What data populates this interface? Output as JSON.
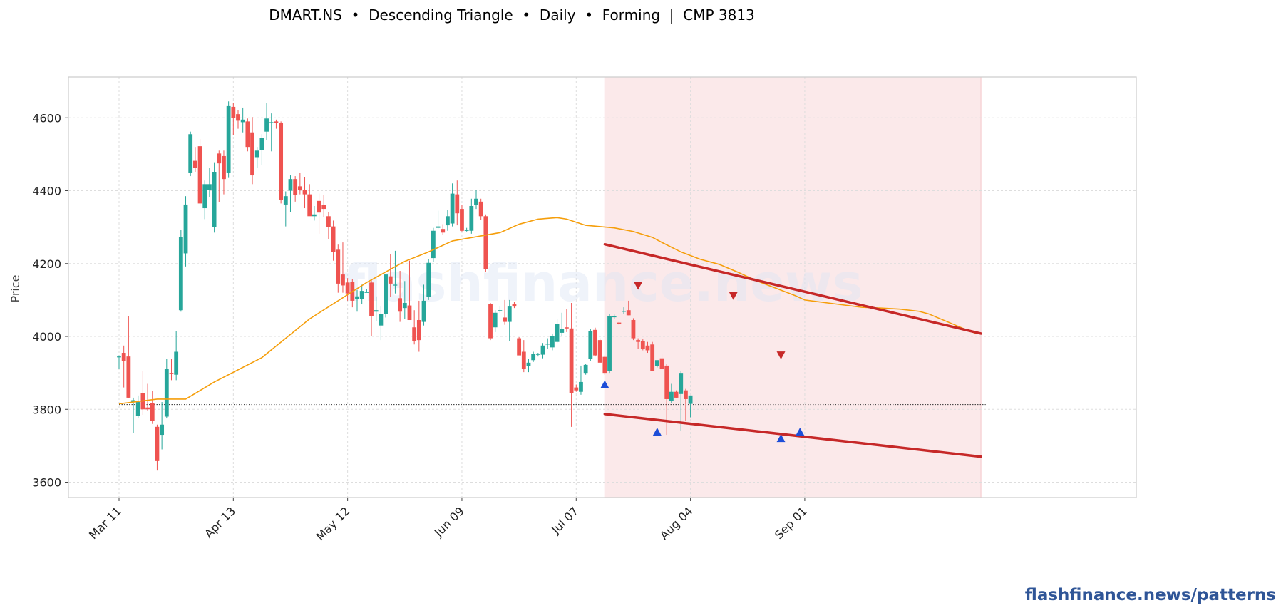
{
  "title": "DMART.NS  •  Descending Triangle  •  Daily  •  Forming  |  CMP 3813",
  "footer": "flashfinance.news/patterns",
  "watermark": "flashfinance.news",
  "colors": {
    "up": "#26a69a",
    "down": "#ef5350",
    "ma": "#f59e0b",
    "trendline": "#c62828",
    "pattern_zone": "#fbe9ea",
    "low_marker": "#1d4ed8",
    "high_marker": "#c62828",
    "footer": "#2f5597"
  },
  "chart_data": {
    "type": "candlestick",
    "ylabel": "Price",
    "ylim": [
      3558,
      4712
    ],
    "yticks": [
      3600,
      3800,
      4000,
      4200,
      4400,
      4600
    ],
    "grid": true,
    "xtick_labels": [
      {
        "label": "Mar 11",
        "index": 0
      },
      {
        "label": "Apr 13",
        "index": 24
      },
      {
        "label": "May 12",
        "index": 48
      },
      {
        "label": "Jun 09",
        "index": 72
      },
      {
        "label": "Jul 07",
        "index": 96
      },
      {
        "label": "Aug 04",
        "index": 120
      },
      {
        "label": "Sep 01",
        "index": 144
      }
    ],
    "candles": [
      [
        3945,
        3948,
        3910,
        3945
      ],
      [
        3955,
        3975,
        3860,
        3932
      ],
      [
        3945,
        4055,
        3830,
        3832
      ],
      [
        3820,
        3832,
        3735,
        3825
      ],
      [
        3782,
        3838,
        3775,
        3820
      ],
      [
        3845,
        3905,
        3785,
        3800
      ],
      [
        3805,
        3870,
        3795,
        3800
      ],
      [
        3818,
        3850,
        3760,
        3768
      ],
      [
        3752,
        3758,
        3632,
        3658
      ],
      [
        3730,
        3820,
        3690,
        3758
      ],
      [
        3780,
        3938,
        3775,
        3912
      ],
      [
        3900,
        3938,
        3880,
        3898
      ],
      [
        3895,
        4015,
        3880,
        3958
      ],
      [
        4072,
        4292,
        4068,
        4272
      ],
      [
        4228,
        4385,
        4192,
        4362
      ],
      [
        4448,
        4562,
        4440,
        4555
      ],
      [
        4482,
        4520,
        4450,
        4462
      ],
      [
        4522,
        4542,
        4358,
        4365
      ],
      [
        4352,
        4428,
        4322,
        4418
      ],
      [
        4402,
        4462,
        4382,
        4418
      ],
      [
        4300,
        4478,
        4285,
        4450
      ],
      [
        4502,
        4510,
        4368,
        4475
      ],
      [
        4495,
        4510,
        4390,
        4432
      ],
      [
        4448,
        4645,
        4435,
        4632
      ],
      [
        4630,
        4640,
        4552,
        4600
      ],
      [
        4610,
        4622,
        4570,
        4592
      ],
      [
        4588,
        4628,
        4560,
        4595
      ],
      [
        4590,
        4598,
        4508,
        4520
      ],
      [
        4560,
        4602,
        4418,
        4442
      ],
      [
        4492,
        4520,
        4462,
        4510
      ],
      [
        4512,
        4555,
        4470,
        4545
      ],
      [
        4562,
        4640,
        4538,
        4598
      ],
      [
        4588,
        4612,
        4508,
        4588
      ],
      [
        4590,
        4595,
        4570,
        4585
      ],
      [
        4585,
        4590,
        4365,
        4375
      ],
      [
        4362,
        4398,
        4302,
        4385
      ],
      [
        4400,
        4442,
        4342,
        4432
      ],
      [
        4432,
        4440,
        4370,
        4388
      ],
      [
        4412,
        4448,
        4390,
        4402
      ],
      [
        4402,
        4438,
        4352,
        4390
      ],
      [
        4390,
        4418,
        4332,
        4330
      ],
      [
        4330,
        4358,
        4318,
        4335
      ],
      [
        4372,
        4392,
        4282,
        4340
      ],
      [
        4360,
        4388,
        4328,
        4350
      ],
      [
        4330,
        4342,
        4268,
        4300
      ],
      [
        4302,
        4318,
        4208,
        4232
      ],
      [
        4238,
        4252,
        4120,
        4145
      ],
      [
        4170,
        4258,
        4120,
        4140
      ],
      [
        4148,
        4160,
        4098,
        4118
      ],
      [
        4150,
        4158,
        4080,
        4098
      ],
      [
        4102,
        4128,
        4068,
        4110
      ],
      [
        4102,
        4142,
        4088,
        4125
      ],
      [
        4122,
        4130,
        4122,
        4122
      ],
      [
        4148,
        4158,
        4000,
        4055
      ],
      [
        4068,
        4110,
        4042,
        4072
      ],
      [
        4030,
        4082,
        3990,
        4062
      ],
      [
        4062,
        4172,
        4052,
        4170
      ],
      [
        4165,
        4225,
        4108,
        4145
      ],
      [
        4140,
        4235,
        4118,
        4142
      ],
      [
        4105,
        4180,
        4040,
        4068
      ],
      [
        4078,
        4152,
        4048,
        4092
      ],
      [
        4085,
        4208,
        4052,
        4045
      ],
      [
        4025,
        4072,
        3978,
        3988
      ],
      [
        4045,
        4098,
        3958,
        3990
      ],
      [
        4040,
        4142,
        4030,
        4098
      ],
      [
        4108,
        4212,
        4100,
        4202
      ],
      [
        4215,
        4298,
        4205,
        4290
      ],
      [
        4298,
        4345,
        4295,
        4302
      ],
      [
        4295,
        4308,
        4278,
        4285
      ],
      [
        4305,
        4348,
        4290,
        4330
      ],
      [
        4310,
        4420,
        4302,
        4392
      ],
      [
        4390,
        4428,
        4305,
        4338
      ],
      [
        4350,
        4360,
        4288,
        4290
      ],
      [
        4292,
        4298,
        4288,
        4292
      ],
      [
        4290,
        4378,
        4282,
        4358
      ],
      [
        4360,
        4402,
        4350,
        4378
      ],
      [
        4370,
        4378,
        4320,
        4330
      ],
      [
        4330,
        4335,
        4178,
        4185
      ],
      [
        4090,
        4092,
        3990,
        3995
      ],
      [
        4025,
        4072,
        4012,
        4065
      ],
      [
        4070,
        4082,
        4065,
        4072
      ],
      [
        4052,
        4100,
        4032,
        4040
      ],
      [
        4040,
        4100,
        3988,
        4082
      ],
      [
        4088,
        4095,
        4078,
        4082
      ],
      [
        3995,
        3998,
        3950,
        3948
      ],
      [
        3958,
        3990,
        3902,
        3912
      ],
      [
        3918,
        3938,
        3902,
        3928
      ],
      [
        3935,
        3958,
        3930,
        3952
      ],
      [
        3950,
        3955,
        3945,
        3952
      ],
      [
        3950,
        3982,
        3940,
        3975
      ],
      [
        3978,
        3995,
        3965,
        3980
      ],
      [
        3970,
        4008,
        3962,
        4002
      ],
      [
        3985,
        4048,
        3982,
        4035
      ],
      [
        4010,
        4065,
        4000,
        4020
      ],
      [
        4025,
        4075,
        4012,
        4022
      ],
      [
        4022,
        4092,
        3752,
        3845
      ],
      [
        3860,
        3868,
        3848,
        3852
      ],
      [
        3848,
        3920,
        3840,
        3875
      ],
      [
        3900,
        3925,
        3895,
        3922
      ],
      [
        3938,
        4020,
        3932,
        4015
      ],
      [
        4018,
        4024,
        3945,
        3948
      ],
      [
        3990,
        3995,
        3928,
        3928
      ],
      [
        3944,
        3948,
        3895,
        3900
      ],
      [
        3905,
        4062,
        3900,
        4055
      ],
      [
        4055,
        4060,
        4048,
        4055
      ],
      [
        4038,
        4040,
        4032,
        4035
      ],
      [
        4070,
        4080,
        4062,
        4070
      ],
      [
        4072,
        4098,
        4058,
        4058
      ],
      [
        4045,
        4050,
        3990,
        3995
      ],
      [
        3990,
        3995,
        3965,
        3985
      ],
      [
        3988,
        3992,
        3962,
        3965
      ],
      [
        3975,
        3985,
        3955,
        3962
      ],
      [
        3978,
        3985,
        3905,
        3905
      ],
      [
        3918,
        3935,
        3915,
        3935
      ],
      [
        3940,
        3952,
        3910,
        3910
      ],
      [
        3920,
        3925,
        3730,
        3828
      ],
      [
        3822,
        3870,
        3818,
        3848
      ],
      [
        3848,
        3852,
        3830,
        3832
      ],
      [
        3842,
        3905,
        3742,
        3900
      ],
      [
        3852,
        3856,
        3768,
        3828
      ],
      [
        3815,
        3832,
        3778,
        3838
      ]
    ],
    "moving_average": [
      [
        0,
        3815
      ],
      [
        8,
        3828
      ],
      [
        14,
        3828
      ],
      [
        20,
        3875
      ],
      [
        30,
        3942
      ],
      [
        40,
        4048
      ],
      [
        52,
        4148
      ],
      [
        60,
        4206
      ],
      [
        65,
        4232
      ],
      [
        70,
        4262
      ],
      [
        80,
        4285
      ],
      [
        84,
        4308
      ],
      [
        88,
        4322
      ],
      [
        92,
        4326
      ],
      [
        94,
        4322
      ],
      [
        98,
        4305
      ],
      [
        104,
        4298
      ],
      [
        108,
        4288
      ],
      [
        112,
        4272
      ],
      [
        114,
        4258
      ],
      [
        118,
        4232
      ],
      [
        122,
        4212
      ],
      [
        126,
        4198
      ],
      [
        130,
        4176
      ],
      [
        134,
        4152
      ],
      [
        138,
        4132
      ],
      [
        142,
        4112
      ],
      [
        144,
        4100
      ],
      [
        150,
        4090
      ],
      [
        156,
        4080
      ],
      [
        160,
        4078
      ],
      [
        164,
        4075
      ],
      [
        168,
        4069
      ],
      [
        170,
        4062
      ],
      [
        174,
        4040
      ],
      [
        178,
        4018
      ],
      [
        180,
        4008
      ]
    ],
    "reference_line": {
      "value": 3813,
      "x0": 0,
      "x1": 182
    },
    "pattern_zone": {
      "x0": 102,
      "x1": 181
    },
    "trendlines": [
      {
        "name": "resistance",
        "x0": 102,
        "y0": 4253,
        "x1": 181,
        "y1": 4008
      },
      {
        "name": "support",
        "x0": 102,
        "y0": 3787,
        "x1": 181,
        "y1": 3670
      }
    ],
    "swing_highs": [
      [
        109,
        4138
      ],
      [
        129,
        4110
      ],
      [
        139,
        3947
      ]
    ],
    "swing_lows": [
      [
        102,
        3870
      ],
      [
        113,
        3740
      ],
      [
        139,
        3722
      ],
      [
        143,
        3740
      ]
    ]
  }
}
